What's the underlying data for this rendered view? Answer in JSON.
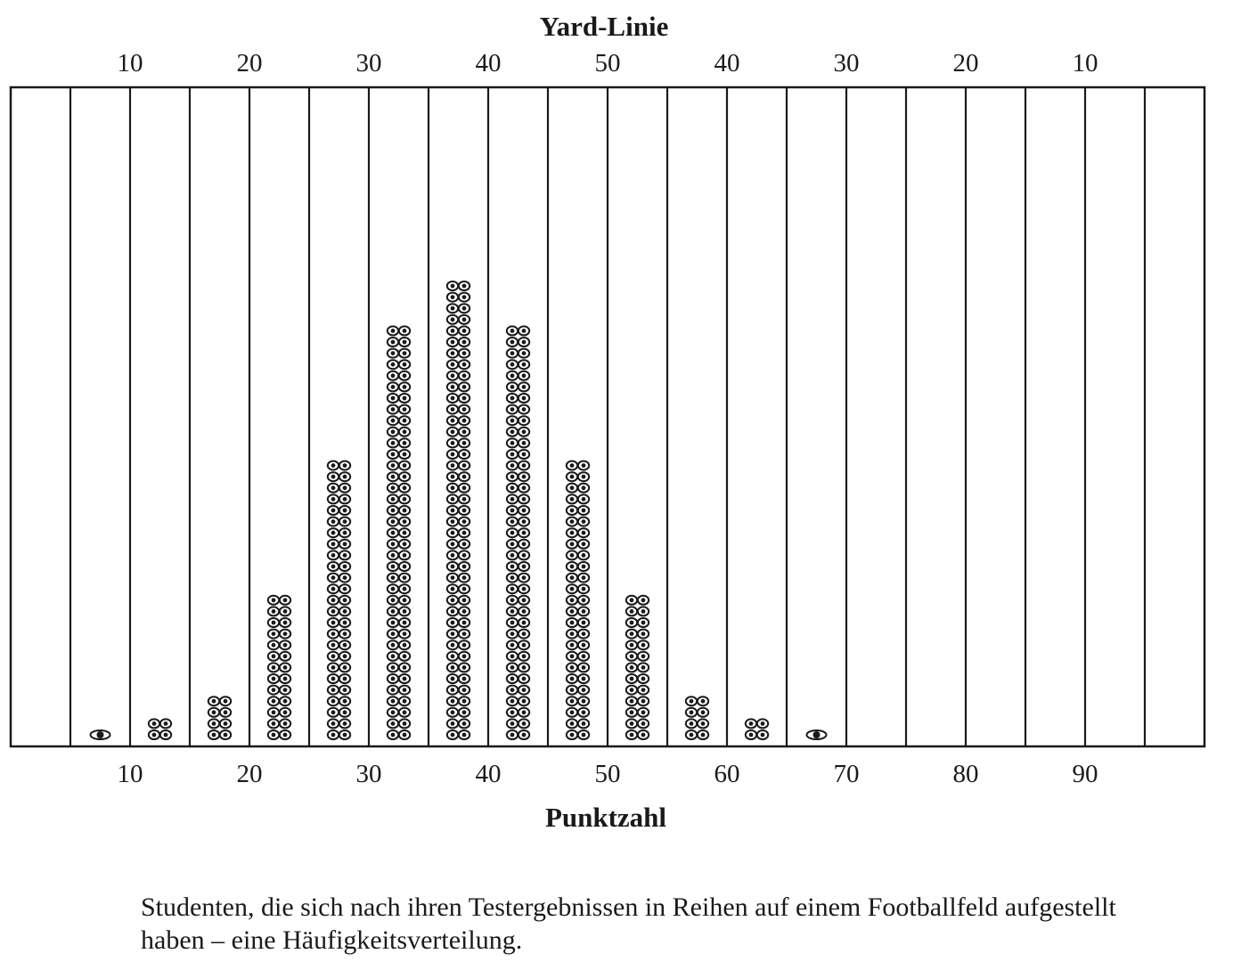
{
  "chart_data": {
    "type": "scatter",
    "style": "stacked dot plot (histogram of students standing in rows on a football field)",
    "title": "",
    "top_axis": {
      "label": "Yard-Linie",
      "ticks": [
        "10",
        "20",
        "30",
        "40",
        "50",
        "40",
        "30",
        "20",
        "10"
      ]
    },
    "bottom_axis": {
      "label": "Punktzahl",
      "ticks": [
        "10",
        "20",
        "30",
        "40",
        "50",
        "60",
        "70",
        "80",
        "90"
      ],
      "range": [
        0,
        100
      ]
    },
    "bin_width": 5,
    "bins": [
      {
        "center": 7.5,
        "rows": 1
      },
      {
        "center": 12.5,
        "rows": 2
      },
      {
        "center": 17.5,
        "rows": 4
      },
      {
        "center": 22.5,
        "rows": 13
      },
      {
        "center": 27.5,
        "rows": 25
      },
      {
        "center": 32.5,
        "rows": 37
      },
      {
        "center": 37.5,
        "rows": 41
      },
      {
        "center": 42.5,
        "rows": 37
      },
      {
        "center": 47.5,
        "rows": 25
      },
      {
        "center": 52.5,
        "rows": 13
      },
      {
        "center": 57.5,
        "rows": 4
      },
      {
        "center": 62.5,
        "rows": 2
      },
      {
        "center": 67.5,
        "rows": 1
      }
    ],
    "grid": true,
    "legend": "none"
  },
  "caption": {
    "line1": "Studenten, die sich nach ihren Testergebnissen in Reihen auf einem Footballfeld aufgestellt",
    "line2": "haben – eine Häufigkeitsverteilung."
  },
  "colors": {
    "ink": "#1a1a1a",
    "background": "#ffffff"
  }
}
